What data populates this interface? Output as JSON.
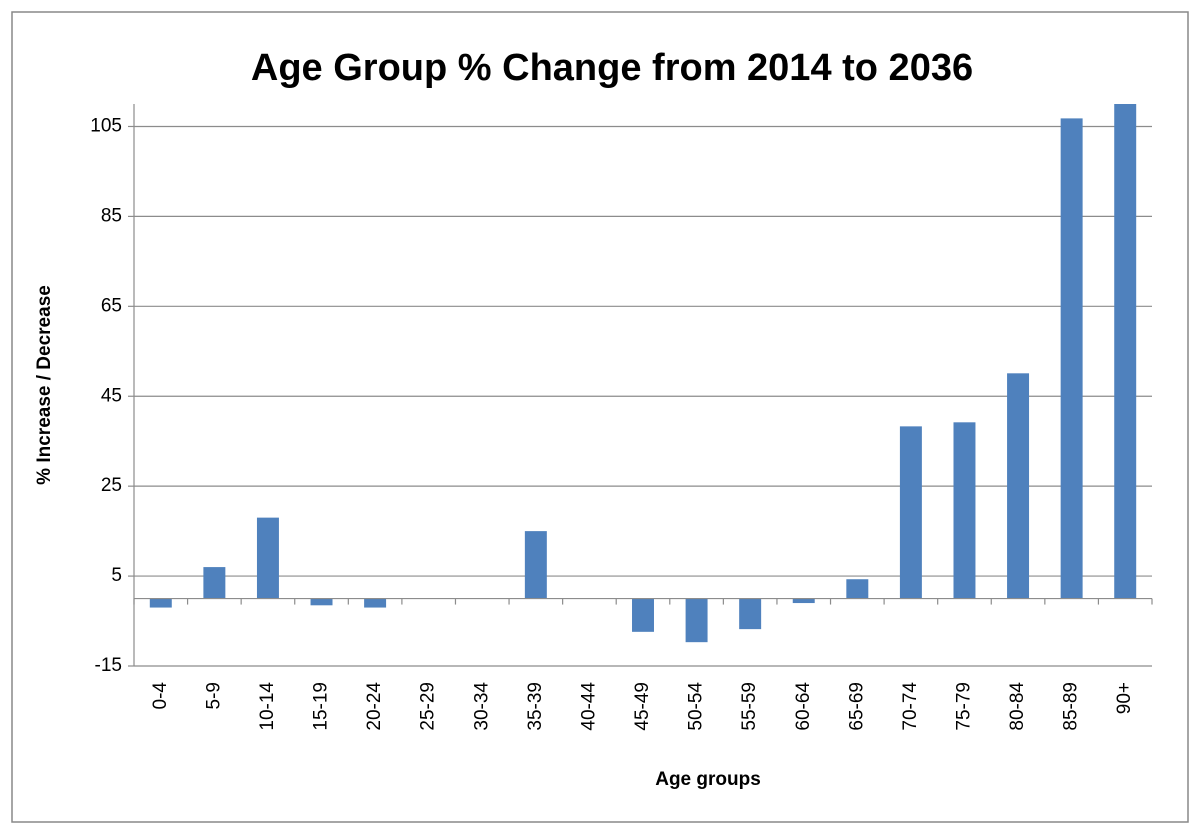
{
  "chart_data": {
    "type": "bar",
    "title": "Age Group % Change from 2014 to 2036",
    "x_label": "Age groups",
    "y_label": "% Increase / Decrease",
    "categories": [
      "0-4",
      "5-9",
      "10-14",
      "15-19",
      "20-24",
      "25-29",
      "30-34",
      "35-39",
      "40-44",
      "45-49",
      "50-54",
      "55-59",
      "60-64",
      "65-69",
      "70-74",
      "75-79",
      "80-84",
      "85-89",
      "90+"
    ],
    "values": [
      -2,
      7,
      18,
      -1.5,
      -2,
      0,
      0,
      15,
      0,
      -7.4,
      -9.7,
      -6.8,
      -1,
      4.3,
      38.3,
      39.2,
      50.1,
      106.8,
      110
    ],
    "color": "#4f81bd",
    "ylim": [
      -15,
      110
    ],
    "yticks": [
      -15,
      5,
      25,
      45,
      65,
      85,
      105
    ],
    "grid": true
  }
}
